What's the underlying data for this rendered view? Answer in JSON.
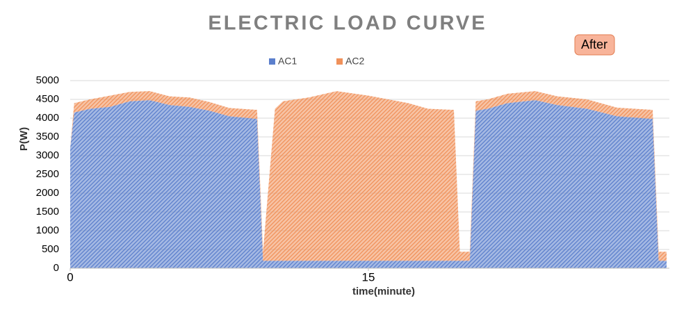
{
  "chart_data": {
    "type": "stacked-area",
    "title": "ELECTRIC LOAD CURVE",
    "annotation": "After",
    "x_label": "time(minute)",
    "y_label": "P(W)",
    "x": [
      0,
      0.2,
      1,
      2,
      3,
      4,
      5,
      6,
      7,
      8,
      9.4,
      9.7,
      10.3,
      10.7,
      12,
      13.4,
      15,
      16,
      17,
      18,
      19.3,
      19.6,
      20.1,
      20.4,
      21,
      22,
      23.4,
      24.5,
      26,
      27.5,
      29.3,
      29.6,
      30
    ],
    "series": [
      {
        "name": "AC1",
        "color": "#5b7fcc",
        "values": [
          3200,
          4150,
          4250,
          4300,
          4450,
          4480,
          4350,
          4300,
          4200,
          4050,
          3980,
          200,
          200,
          200,
          200,
          200,
          200,
          200,
          200,
          200,
          200,
          200,
          200,
          4200,
          4250,
          4400,
          4480,
          4350,
          4250,
          4050,
          3980,
          200,
          200
        ]
      },
      {
        "name": "AC2",
        "color": "#f0915a",
        "values": [
          0,
          250,
          250,
          300,
          250,
          240,
          230,
          250,
          230,
          220,
          240,
          240,
          4050,
          4250,
          4350,
          4520,
          4400,
          4300,
          4200,
          4050,
          4020,
          240,
          240,
          250,
          250,
          250,
          240,
          230,
          250,
          230,
          240,
          240,
          240
        ]
      }
    ],
    "xlim": [
      0,
      30
    ],
    "xticks": [
      0,
      15
    ],
    "ylim": [
      0,
      5000
    ],
    "yticks": [
      0,
      500,
      1000,
      1500,
      2000,
      2500,
      3000,
      3500,
      4000,
      4500,
      5000
    ],
    "grid": true,
    "legend": "top"
  }
}
